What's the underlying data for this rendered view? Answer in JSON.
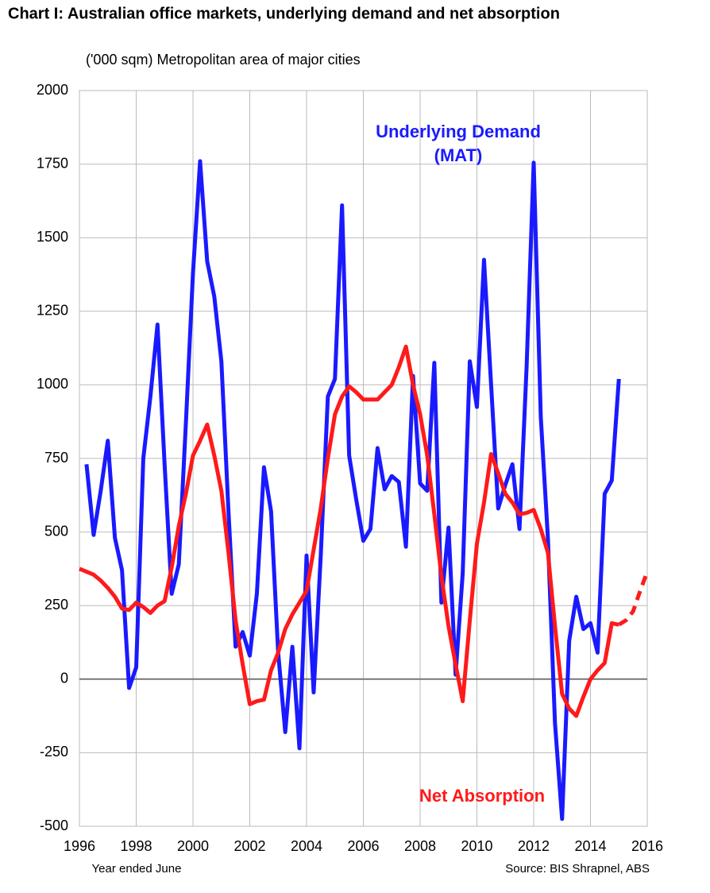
{
  "chart_data": {
    "type": "line",
    "title": "Chart I: Australian office markets, underlying demand and net absorption",
    "subtitle": "('000 sqm) Metropolitan area of major cities",
    "x_label": "Year ended June",
    "source": "Source: BIS Shrapnel, ABS",
    "xlim": [
      1996,
      2016
    ],
    "xticks": [
      1996,
      1998,
      2000,
      2002,
      2004,
      2006,
      2008,
      2010,
      2012,
      2014,
      2016
    ],
    "ylim": [
      -500,
      2000
    ],
    "yticks": [
      -500,
      -250,
      0,
      250,
      500,
      750,
      1000,
      1250,
      1500,
      1750,
      2000
    ],
    "grid": true,
    "series": [
      {
        "name": [
          "Underlying Demand",
          "(MAT)"
        ],
        "color": "#1a1aff",
        "x": [
          1996.25,
          1996.5,
          1996.75,
          1997,
          1997.25,
          1997.5,
          1997.75,
          1998,
          1998.25,
          1998.5,
          1998.75,
          1999,
          1999.25,
          1999.5,
          1999.75,
          2000,
          2000.25,
          2000.5,
          2000.75,
          2001,
          2001.25,
          2001.5,
          2001.75,
          2002,
          2002.25,
          2002.5,
          2002.75,
          2003,
          2003.25,
          2003.5,
          2003.75,
          2004,
          2004.25,
          2004.5,
          2004.75,
          2005,
          2005.25,
          2005.5,
          2005.75,
          2006,
          2006.25,
          2006.5,
          2006.75,
          2007,
          2007.25,
          2007.5,
          2007.75,
          2008,
          2008.25,
          2008.5,
          2008.75,
          2009,
          2009.25,
          2009.5,
          2009.75,
          2010,
          2010.25,
          2010.5,
          2010.75,
          2011,
          2011.25,
          2011.5,
          2011.75,
          2012,
          2012.25,
          2012.5,
          2012.75,
          2013,
          2013.25,
          2013.5,
          2013.75,
          2014,
          2014.25,
          2014.5,
          2014.75,
          2015
        ],
        "values": [
          730,
          490,
          640,
          810,
          480,
          370,
          -30,
          40,
          750,
          960,
          1205,
          730,
          290,
          390,
          870,
          1380,
          1760,
          1420,
          1300,
          1080,
          570,
          110,
          160,
          80,
          290,
          720,
          570,
          90,
          -180,
          110,
          -235,
          420,
          -45,
          420,
          960,
          1020,
          1610,
          760,
          610,
          470,
          510,
          785,
          645,
          690,
          670,
          450,
          1030,
          665,
          640,
          1075,
          260,
          515,
          15,
          360,
          1080,
          925,
          1425,
          1000,
          580,
          660,
          730,
          510,
          1060,
          1755,
          890,
          480,
          -150,
          -475,
          130,
          280,
          170,
          190,
          90,
          630,
          675,
          1020
        ]
      },
      {
        "name": "Net Absorption",
        "color": "#ff1a1a",
        "dash_from": 2015,
        "x": [
          1996,
          1996.25,
          1996.5,
          1996.75,
          1997,
          1997.25,
          1997.5,
          1997.75,
          1998,
          1998.25,
          1998.5,
          1998.75,
          1999,
          1999.25,
          1999.5,
          1999.75,
          2000,
          2000.25,
          2000.5,
          2000.75,
          2001,
          2001.25,
          2001.5,
          2001.75,
          2002,
          2002.25,
          2002.5,
          2002.75,
          2003,
          2003.25,
          2003.5,
          2003.75,
          2004,
          2004.25,
          2004.5,
          2004.75,
          2005,
          2005.25,
          2005.5,
          2005.75,
          2006,
          2006.25,
          2006.5,
          2006.75,
          2007,
          2007.25,
          2007.5,
          2007.75,
          2008,
          2008.25,
          2008.5,
          2008.75,
          2009,
          2009.25,
          2009.5,
          2009.75,
          2010,
          2010.25,
          2010.5,
          2010.75,
          2011,
          2011.25,
          2011.5,
          2011.75,
          2012,
          2012.25,
          2012.5,
          2012.75,
          2013,
          2013.25,
          2013.5,
          2013.75,
          2014,
          2014.25,
          2014.5,
          2014.75,
          2015,
          2015.25,
          2015.5,
          2015.75,
          2016
        ],
        "values": [
          375,
          365,
          355,
          335,
          310,
          280,
          240,
          235,
          260,
          245,
          225,
          250,
          265,
          380,
          520,
          630,
          760,
          810,
          865,
          760,
          640,
          430,
          200,
          50,
          -85,
          -75,
          -70,
          30,
          90,
          170,
          220,
          260,
          300,
          440,
          580,
          750,
          900,
          960,
          995,
          975,
          950,
          950,
          950,
          975,
          1000,
          1060,
          1130,
          1000,
          900,
          760,
          560,
          350,
          180,
          50,
          -75,
          200,
          460,
          600,
          765,
          700,
          630,
          600,
          560,
          565,
          575,
          510,
          430,
          180,
          -50,
          -100,
          -125,
          -60,
          0,
          30,
          55,
          190,
          185,
          200,
          230,
          300,
          365
        ]
      }
    ]
  }
}
